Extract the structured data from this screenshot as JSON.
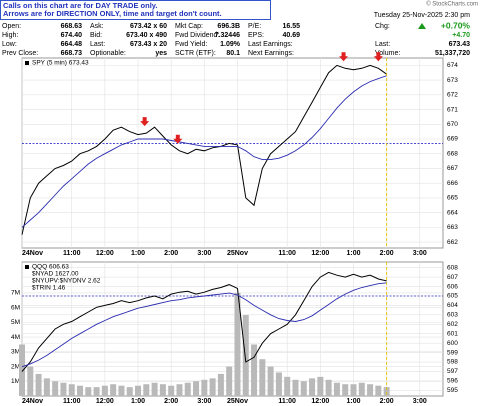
{
  "header": {
    "notice": [
      "Calls on this chart are for DAY TRADE only.",
      "Arrows are for DIRECTION ONLY, time and target don't count."
    ],
    "watermark": "© StockCharts.com",
    "date": "Tuesday 25-Nov-2025 2:30 pm",
    "quote": [
      [
        [
          "Open:",
          "668.63"
        ],
        [
          "High:",
          "674.40"
        ],
        [
          "Low:",
          "664.48"
        ],
        [
          "Prev Close:",
          "668.73"
        ]
      ],
      [
        [
          "Ask:",
          "673.42 x 60"
        ],
        [
          "Bid:",
          "673.40 x 490"
        ],
        [
          "Last:",
          "673.43 x 20"
        ],
        [
          "Optionable:",
          "yes"
        ]
      ],
      [
        [
          "Mkt Cap:",
          "696.3B"
        ],
        [
          "Fwd Dividend:",
          "7.32446"
        ],
        [
          "Fwd Yield:",
          "1.09%"
        ],
        [
          "SCTR (ETF):",
          "80.1"
        ]
      ],
      [
        [
          "P/E:",
          "16.55"
        ],
        [
          "EPS:",
          "40.69"
        ],
        [
          "Last Earnings:"
        ],
        [
          "Next Earnings:"
        ]
      ]
    ],
    "summary": {
      "chg_label": "Chg:",
      "chg_pct": "+0.70%",
      "chg": "+4.70",
      "last_label": "Last:",
      "last": "673.43",
      "volume_label": "Volume:",
      "volume": "51,337,720"
    }
  },
  "chart_data": [
    {
      "type": "line",
      "yaxis_side": "right",
      "grid": true,
      "x": [
        0,
        0.25,
        0.5,
        0.75,
        1,
        1.25,
        1.5,
        1.75,
        2,
        2.25,
        2.5,
        2.75,
        3,
        3.25,
        3.5,
        3.75,
        4,
        4.25,
        4.5,
        4.75,
        5,
        5.25,
        5.5,
        5.75,
        6,
        6.25,
        6.5,
        6.75,
        7,
        7.25,
        7.5,
        7.75,
        8,
        8.25,
        8.5,
        8.75,
        9,
        9.25,
        9.5,
        9.75,
        10,
        10.25,
        10.5,
        10.75,
        11
      ],
      "xlim": [
        0,
        12.7
      ],
      "xticks": [
        {
          "value": 0,
          "label": "24Nov"
        },
        {
          "value": 1.5,
          "label": "11:00"
        },
        {
          "value": 2.5,
          "label": "12:00"
        },
        {
          "value": 3.5,
          "label": "1:00"
        },
        {
          "value": 4.5,
          "label": "2:00"
        },
        {
          "value": 5.5,
          "label": "3:00"
        },
        {
          "value": 6.5,
          "label": "25Nov"
        },
        {
          "value": 8,
          "label": "11:00"
        },
        {
          "value": 9,
          "label": "12:00"
        },
        {
          "value": 10,
          "label": "1:00"
        },
        {
          "value": 11,
          "label": "2:00"
        },
        {
          "value": 12,
          "label": "3:00"
        }
      ],
      "ylim": [
        661.6,
        674.5
      ],
      "yticks": [
        662,
        663,
        664,
        665,
        666,
        667,
        668,
        669,
        670,
        671,
        672,
        673,
        674
      ],
      "series": [
        {
          "name": "SPY (5 min) 673.43",
          "color": "#000000",
          "values": [
            662.5,
            665,
            666,
            666.5,
            667,
            667.2,
            667.5,
            668,
            668.2,
            668.5,
            669,
            669.6,
            669.8,
            669.5,
            669.3,
            669.4,
            669.8,
            669.2,
            668.6,
            668.2,
            668,
            668.3,
            668.2,
            668.4,
            668.5,
            668.7,
            668.6,
            665,
            664.5,
            667,
            668,
            668.5,
            669,
            669.5,
            670.5,
            671.5,
            672.5,
            673.5,
            674,
            673.8,
            673.7,
            673.8,
            674,
            673.8,
            673.4
          ]
        },
        {
          "color": "#2b2bb0",
          "values": [
            663,
            663.5,
            664,
            664.6,
            665.2,
            665.8,
            666.3,
            666.8,
            667.3,
            667.7,
            668,
            668.3,
            668.6,
            668.8,
            669,
            669,
            669,
            669,
            668.9,
            668.8,
            668.7,
            668.6,
            668.5,
            668.5,
            668.5,
            668.5,
            668.5,
            668.2,
            667.8,
            667.6,
            667.6,
            667.7,
            667.9,
            668.2,
            668.6,
            669.1,
            669.7,
            670.4,
            671.1,
            671.7,
            672.2,
            672.6,
            672.9,
            673.1,
            673.3
          ]
        }
      ],
      "reference_lines": [
        {
          "value": 668.7,
          "color": "#3333cc"
        }
      ],
      "arrows": [
        3.7,
        4.7,
        9.7,
        10.75
      ],
      "arrow_color": "#e02020",
      "cursor": 11,
      "cursor_color": "#e8c000"
    },
    {
      "type": "line",
      "yaxis_side": "left",
      "grid": true,
      "x": [
        0,
        0.25,
        0.5,
        0.75,
        1,
        1.25,
        1.5,
        1.75,
        2,
        2.25,
        2.5,
        2.75,
        3,
        3.25,
        3.5,
        3.75,
        4,
        4.25,
        4.5,
        4.75,
        5,
        5.25,
        5.5,
        5.75,
        6,
        6.25,
        6.5,
        6.75,
        7,
        7.25,
        7.5,
        7.75,
        8,
        8.25,
        8.5,
        8.75,
        9,
        9.25,
        9.5,
        9.75,
        10,
        10.25,
        10.5,
        10.75,
        11
      ],
      "xlim": [
        0,
        12.7
      ],
      "xticks": [
        {
          "value": 0,
          "label": "24Nov"
        },
        {
          "value": 1.5,
          "label": "11:00"
        },
        {
          "value": 2.5,
          "label": "12:00"
        },
        {
          "value": 3.5,
          "label": "1:00"
        },
        {
          "value": 4.5,
          "label": "2:00"
        },
        {
          "value": 5.5,
          "label": "3:00"
        },
        {
          "value": 6.5,
          "label": "25Nov"
        },
        {
          "value": 8,
          "label": "11:00"
        },
        {
          "value": 9,
          "label": "12:00"
        },
        {
          "value": 10,
          "label": "1:00"
        },
        {
          "value": 11,
          "label": "2:00"
        },
        {
          "value": 12,
          "label": "3:00"
        }
      ],
      "ylim": [
        0,
        9.1
      ],
      "yticks": [
        {
          "value": 1,
          "label": "1M"
        },
        {
          "value": 2,
          "label": "2M"
        },
        {
          "value": 3,
          "label": "3M"
        },
        {
          "value": 4,
          "label": "4M"
        },
        {
          "value": 5,
          "label": "5M"
        },
        {
          "value": 6,
          "label": "6M"
        },
        {
          "value": 7,
          "label": "7M"
        }
      ],
      "y2lim": [
        594.4,
        608.6
      ],
      "y2ticks": [
        595,
        596,
        597,
        598,
        599,
        600,
        601,
        602,
        603,
        604,
        605,
        606,
        607,
        608
      ],
      "series": [
        {
          "type": "bar",
          "color": "#b9b9b9",
          "values": [
            3.5,
            2,
            1.5,
            1.2,
            1,
            0.9,
            0.8,
            0.7,
            0.6,
            0.6,
            0.7,
            0.8,
            0.7,
            0.6,
            0.7,
            0.8,
            0.9,
            0.8,
            0.7,
            0.8,
            0.9,
            1,
            1.1,
            1.2,
            1.5,
            2,
            7,
            5.5,
            3.5,
            2.5,
            2,
            1.6,
            1.3,
            1.1,
            1,
            1.2,
            1.3,
            1.1,
            0.9,
            0.8,
            0.8,
            0.9,
            0.8,
            0.7,
            0.6
          ]
        },
        {
          "name": "QQQ 606.63",
          "axis": "y2",
          "color": "#000000",
          "values": [
            597,
            598,
            599.5,
            600.5,
            601.5,
            602,
            602.3,
            602.8,
            603.3,
            603.8,
            604,
            604.2,
            604.5,
            604.3,
            604.5,
            604.8,
            605,
            604.7,
            605.2,
            605.4,
            605.5,
            605.2,
            605.4,
            605.7,
            605.9,
            606.2,
            605.8,
            598,
            598.5,
            600,
            601,
            601.5,
            602,
            603,
            604.5,
            606,
            607,
            607.5,
            607.2,
            607,
            607.3,
            607,
            607.2,
            606.8,
            606.6
          ]
        },
        {
          "axis": "y2",
          "color": "#2b2bb0",
          "values": [
            597.5,
            597.8,
            598.2,
            598.7,
            599.3,
            599.9,
            600.5,
            601,
            601.5,
            602,
            602.4,
            602.8,
            603.1,
            603.4,
            603.7,
            603.9,
            604.1,
            604.3,
            604.5,
            604.6,
            604.8,
            604.9,
            605,
            605.1,
            605.2,
            605.3,
            605.1,
            604.6,
            604,
            603.5,
            603,
            602.6,
            602.4,
            602.3,
            602.5,
            602.9,
            603.5,
            604.1,
            604.7,
            605.2,
            605.6,
            605.9,
            606.1,
            606.3,
            606.4
          ]
        }
      ],
      "indicators": [
        "$NYAD 1627.00",
        "$NYUPV:$NYDNV 2.62",
        "$TRIN 1.46"
      ],
      "reference_lines": [
        {
          "value": 605,
          "axis": "y2",
          "color": "#3333cc"
        }
      ],
      "cursor": 11,
      "cursor_color": "#e8c000"
    }
  ]
}
